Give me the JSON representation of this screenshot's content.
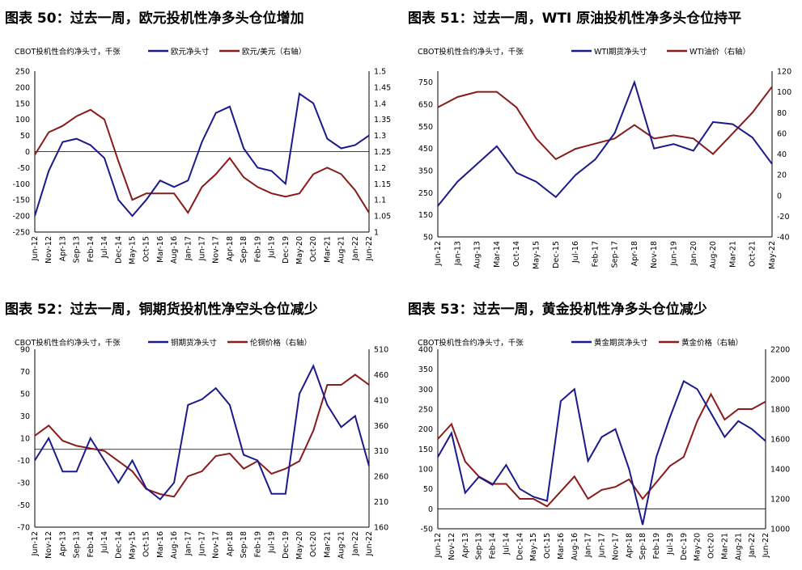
{
  "colors": {
    "navy": "#1a1a8c",
    "maroon": "#8b1a1a",
    "axis": "#000000",
    "zero": "#000000"
  },
  "charts": [
    {
      "title": "图表 50：过去一周，欧元投机性净多头仓位增加",
      "unit": "CBOT投机性合约净头寸，千张",
      "x_labels": [
        "Jun-12",
        "Nov-12",
        "Apr-13",
        "Sep-13",
        "Feb-14",
        "Jul-14",
        "Dec-14",
        "May-15",
        "Oct-15",
        "Mar-16",
        "Aug-16",
        "Jan-17",
        "Jun-17",
        "Nov-17",
        "Apr-18",
        "Sep-18",
        "Feb-19",
        "Jul-19",
        "Dec-19",
        "May-20",
        "Oct-20",
        "Mar-21",
        "Aug-21",
        "Jan-22",
        "Jun-22"
      ],
      "left_ticks": [
        "250",
        "200",
        "150",
        "100",
        "50",
        "0",
        "-50",
        "-100",
        "-150",
        "-200",
        "-250"
      ],
      "right_ticks": [
        "1.5",
        "1.45",
        "1.4",
        "1.35",
        "1.3",
        "1.25",
        "1.2",
        "1.15",
        "1.1",
        "1.05",
        "1"
      ]
    },
    {
      "title": "图表 51：过去一周，WTI 原油投机性净多头仓位持平",
      "unit": "CBOT投机性合约净头寸，千张",
      "x_labels": [
        "Jun-12",
        "Jan-13",
        "Aug-13",
        "Mar-14",
        "Oct-14",
        "May-15",
        "Dec-15",
        "Jul-16",
        "Feb-17",
        "Sep-17",
        "Apr-18",
        "Nov-18",
        "Jun-19",
        "Jan-20",
        "Aug-20",
        "Mar-21",
        "Oct-21",
        "May-22"
      ],
      "left_ticks": [
        "750",
        "650",
        "550",
        "450",
        "350",
        "250",
        "150",
        "50"
      ],
      "right_ticks": [
        "120",
        "100",
        "80",
        "60",
        "40",
        "20",
        "0",
        "-20",
        "-40"
      ]
    },
    {
      "title": "图表 52：过去一周，铜期货投机性净空头仓位减少",
      "unit": "CBOT投机性合约净头寸，千张",
      "x_labels": [
        "Jun-12",
        "Nov-12",
        "Apr-13",
        "Sep-13",
        "Feb-14",
        "Jul-14",
        "Dec-14",
        "May-15",
        "Oct-15",
        "Mar-16",
        "Aug-16",
        "Jan-17",
        "Jun-17",
        "Nov-17",
        "Apr-18",
        "Sep-18",
        "Feb-19",
        "Jul-19",
        "Dec-19",
        "May-20",
        "Oct-20",
        "Mar-21",
        "Aug-21",
        "Jan-22",
        "Jun-22"
      ],
      "left_ticks": [
        "90",
        "70",
        "50",
        "30",
        "10",
        "-10",
        "-30",
        "-50",
        "-70"
      ],
      "right_ticks": [
        "510",
        "460",
        "410",
        "360",
        "310",
        "260",
        "210",
        "160"
      ]
    },
    {
      "title": "图表 53：过去一周，黄金投机性净多头仓位减少",
      "unit": "CBOT投机性合约净头寸，千张",
      "x_labels": [
        "Jun-12",
        "Nov-12",
        "Apr-13",
        "Sep-13",
        "Feb-14",
        "Jul-14",
        "Dec-14",
        "May-15",
        "Oct-15",
        "Mar-16",
        "Aug-16",
        "Jan-17",
        "Jun-17",
        "Nov-17",
        "Apr-18",
        "Sep-18",
        "Feb-19",
        "Jul-19",
        "Dec-19",
        "May-20",
        "Oct-20",
        "Mar-21",
        "Aug-21",
        "Jan-22",
        "Jun-22"
      ],
      "left_ticks": [
        "400",
        "350",
        "300",
        "250",
        "200",
        "150",
        "100",
        "50",
        "0",
        "-50"
      ],
      "right_ticks": [
        "2200",
        "2000",
        "1800",
        "1600",
        "1400",
        "1200",
        "1000"
      ]
    }
  ],
  "chart_data": [
    {
      "type": "line",
      "title": "图表 50：过去一周，欧元投机性净多头仓位增加",
      "x": [
        "Jun-12",
        "Nov-12",
        "Apr-13",
        "Sep-13",
        "Feb-14",
        "Jul-14",
        "Dec-14",
        "May-15",
        "Oct-15",
        "Mar-16",
        "Aug-16",
        "Jan-17",
        "Jun-17",
        "Nov-17",
        "Apr-18",
        "Sep-18",
        "Feb-19",
        "Jul-19",
        "Dec-19",
        "May-20",
        "Oct-20",
        "Mar-21",
        "Aug-21",
        "Jan-22",
        "Jun-22"
      ],
      "ylim_left": [
        -250,
        250
      ],
      "ylim_right": [
        1,
        1.5
      ],
      "series": [
        {
          "name": "欧元净头寸",
          "axis": "left",
          "values": [
            -200,
            -60,
            30,
            40,
            20,
            -20,
            -150,
            -200,
            -150,
            -90,
            -110,
            -90,
            30,
            120,
            140,
            10,
            -50,
            -60,
            -100,
            180,
            150,
            40,
            10,
            20,
            50
          ]
        },
        {
          "name": "欧元/美元（右轴）",
          "axis": "right",
          "values": [
            1.24,
            1.31,
            1.33,
            1.36,
            1.38,
            1.35,
            1.22,
            1.1,
            1.12,
            1.12,
            1.12,
            1.06,
            1.14,
            1.18,
            1.23,
            1.17,
            1.14,
            1.12,
            1.11,
            1.12,
            1.18,
            1.2,
            1.18,
            1.13,
            1.06
          ]
        }
      ]
    },
    {
      "type": "line",
      "title": "图表 51：过去一周，WTI 原油投机性净多头仓位持平",
      "x": [
        "Jun-12",
        "Jan-13",
        "Aug-13",
        "Mar-14",
        "Oct-14",
        "May-15",
        "Dec-15",
        "Jul-16",
        "Feb-17",
        "Sep-17",
        "Apr-18",
        "Nov-18",
        "Jun-19",
        "Jan-20",
        "Aug-20",
        "Mar-21",
        "Oct-21",
        "May-22"
      ],
      "ylim_left": [
        50,
        800
      ],
      "ylim_right": [
        -40,
        120
      ],
      "series": [
        {
          "name": "WTI期货净头寸",
          "axis": "left",
          "values": [
            190,
            300,
            380,
            460,
            340,
            300,
            230,
            330,
            400,
            520,
            750,
            450,
            470,
            440,
            570,
            560,
            500,
            380
          ]
        },
        {
          "name": "WTI油价（右轴）",
          "axis": "right",
          "values": [
            85,
            95,
            100,
            100,
            85,
            55,
            35,
            45,
            50,
            55,
            68,
            55,
            58,
            55,
            40,
            60,
            80,
            105
          ]
        }
      ]
    },
    {
      "type": "line",
      "title": "图表 52：过去一周，铜期货投机性净空头仓位减少",
      "x": [
        "Jun-12",
        "Nov-12",
        "Apr-13",
        "Sep-13",
        "Feb-14",
        "Jul-14",
        "Dec-14",
        "May-15",
        "Oct-15",
        "Mar-16",
        "Aug-16",
        "Jan-17",
        "Jun-17",
        "Nov-17",
        "Apr-18",
        "Sep-18",
        "Feb-19",
        "Jul-19",
        "Dec-19",
        "May-20",
        "Oct-20",
        "Mar-21",
        "Aug-21",
        "Jan-22",
        "Jun-22"
      ],
      "ylim_left": [
        -70,
        90
      ],
      "ylim_right": [
        160,
        510
      ],
      "series": [
        {
          "name": "铜期货净头寸",
          "axis": "left",
          "values": [
            -10,
            10,
            -20,
            -20,
            10,
            -10,
            -30,
            -10,
            -35,
            -45,
            -30,
            40,
            45,
            55,
            40,
            -5,
            -10,
            -40,
            -40,
            50,
            75,
            40,
            20,
            30,
            -15
          ]
        },
        {
          "name": "伦铜价格（右轴）",
          "axis": "right",
          "values": [
            340,
            360,
            330,
            320,
            315,
            310,
            290,
            270,
            235,
            225,
            220,
            260,
            270,
            300,
            305,
            275,
            290,
            265,
            275,
            290,
            350,
            440,
            440,
            460,
            440
          ]
        }
      ]
    },
    {
      "type": "line",
      "title": "图表 53：过去一周，黄金投机性净多头仓位减少",
      "x": [
        "Jun-12",
        "Nov-12",
        "Apr-13",
        "Sep-13",
        "Feb-14",
        "Jul-14",
        "Dec-14",
        "May-15",
        "Oct-15",
        "Mar-16",
        "Aug-16",
        "Jan-17",
        "Jun-17",
        "Nov-17",
        "Apr-18",
        "Sep-18",
        "Feb-19",
        "Jul-19",
        "Dec-19",
        "May-20",
        "Oct-20",
        "Mar-21",
        "Aug-21",
        "Jan-22",
        "Jun-22"
      ],
      "ylim_left": [
        -50,
        400
      ],
      "ylim_right": [
        1000,
        2200
      ],
      "series": [
        {
          "name": "黄金期货净头寸",
          "axis": "left",
          "values": [
            130,
            190,
            40,
            80,
            60,
            110,
            50,
            30,
            20,
            270,
            300,
            120,
            180,
            200,
            100,
            -40,
            130,
            230,
            320,
            300,
            240,
            180,
            220,
            200,
            170
          ]
        },
        {
          "name": "黄金价格（右轴）",
          "axis": "right",
          "values": [
            1600,
            1700,
            1450,
            1350,
            1300,
            1300,
            1200,
            1200,
            1150,
            1250,
            1350,
            1200,
            1260,
            1280,
            1330,
            1200,
            1310,
            1420,
            1480,
            1720,
            1900,
            1730,
            1800,
            1800,
            1850
          ]
        }
      ]
    }
  ]
}
